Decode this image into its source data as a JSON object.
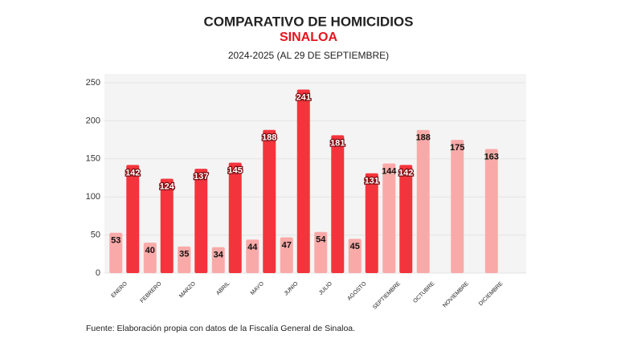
{
  "chart_data": {
    "type": "bar",
    "title": "COMPARATIVO DE HOMICIDIOS",
    "subtitle": "SINALOA",
    "period": "2024-2025 (AL 29 DE SEPTIEMBRE)",
    "source": "Fuente: Elaboración propia con datos de la Fiscalía General de Sinaloa.",
    "categories": [
      "ENERO",
      "FEBRERO",
      "MARZO",
      "ABRIL",
      "MAYO",
      "JUNIO",
      "JULIO",
      "AGOSTO",
      "SEPTIEMBRE",
      "OCTUBRE",
      "NOVIEMBRE",
      "DICIEMBRE"
    ],
    "series": [
      {
        "color": "#f9aaa8",
        "values": [
          53,
          40,
          35,
          34,
          44,
          47,
          54,
          45,
          144,
          188,
          175,
          163
        ]
      },
      {
        "color": "#f4343c",
        "values": [
          142,
          124,
          137,
          145,
          188,
          241,
          181,
          131,
          142,
          null,
          null,
          null
        ]
      }
    ],
    "ylim": [
      0,
      250
    ],
    "yticks": [
      0,
      50,
      100,
      150,
      200,
      250
    ],
    "grid": true,
    "subtitle_color": "#e3141e"
  }
}
